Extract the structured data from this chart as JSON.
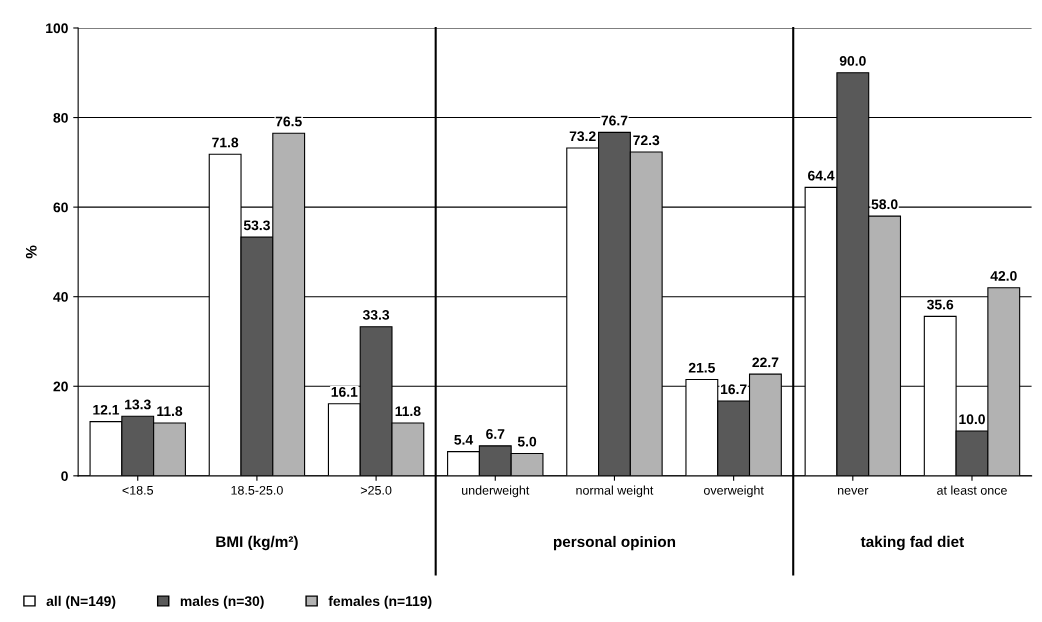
{
  "chart_data": {
    "type": "bar",
    "ylabel": "%",
    "categories": [
      "<18.5",
      "18.5-25.0",
      ">25.0",
      "underweight",
      "normal weight",
      "overweight",
      "never",
      "at least once"
    ],
    "series": [
      {
        "name": "all (N=149)",
        "color": "#ffffff",
        "values": [
          12.1,
          71.8,
          16.1,
          5.4,
          73.2,
          21.5,
          64.4,
          35.6
        ],
        "value_labels": [
          "12.1",
          "71.8",
          "16.1",
          "5.4",
          "73.2",
          "21.5",
          "64.4",
          "35.6"
        ]
      },
      {
        "name": "males (n=30)",
        "color": "#595959",
        "values": [
          13.3,
          53.3,
          33.3,
          6.7,
          76.7,
          16.7,
          90.0,
          10.0
        ],
        "value_labels": [
          "13.3",
          "53.3",
          "33.3",
          "6.7",
          "76.7",
          "16.7",
          "90.0",
          "10.0"
        ]
      },
      {
        "name": "females (n=119)",
        "color": "#b2b2b2",
        "values": [
          11.8,
          76.5,
          11.8,
          5.0,
          72.3,
          22.7,
          58.0,
          42.0
        ],
        "value_labels": [
          "11.8",
          "76.5",
          "11.8",
          "5.0",
          "72.3",
          "22.7",
          "58.0",
          "42.0"
        ]
      }
    ],
    "ylim": [
      0,
      100
    ],
    "yticks": [
      0,
      20,
      40,
      60,
      80,
      100
    ],
    "grid": "y",
    "legend": "bottom left",
    "annotations": [
      "BMI (kg/m²)",
      "personal opinion",
      "taking fad diet"
    ]
  }
}
